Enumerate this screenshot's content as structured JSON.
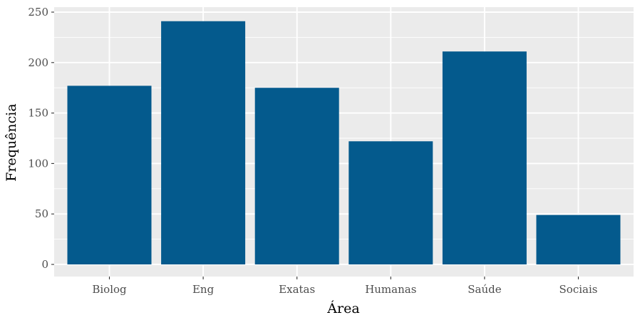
{
  "chart_data": {
    "type": "bar",
    "categories": [
      "Biolog",
      "Eng",
      "Exatas",
      "Humanas",
      "Saúde",
      "Sociais"
    ],
    "values": [
      177,
      241,
      175,
      122,
      211,
      49
    ],
    "xlabel": "Área",
    "ylabel": "Frequência",
    "ylim": [
      0,
      250
    ],
    "yticks": [
      0,
      50,
      100,
      150,
      200,
      250
    ],
    "grid": true,
    "colors": {
      "bar": "#045A8D",
      "panel": "#EBEBEB",
      "grid": "#FFFFFF"
    }
  }
}
